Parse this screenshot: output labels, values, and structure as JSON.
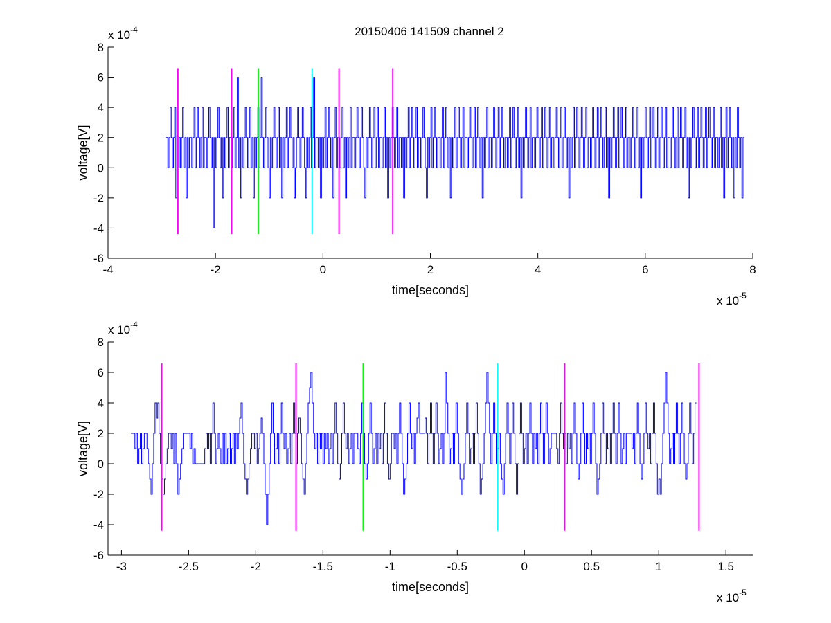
{
  "figure": {
    "title": "20150406 141509 channel 2"
  },
  "chart_data": [
    {
      "type": "line",
      "xlabel": "time[seconds]",
      "ylabel": "voltage[V]",
      "x_multiplier_text": "x 10",
      "x_multiplier_exp": "-5",
      "y_multiplier_text": "x 10",
      "y_multiplier_exp": "-4",
      "xlim": [
        -4,
        8
      ],
      "ylim": [
        -6,
        8
      ],
      "xticks": [
        -4,
        -2,
        0,
        2,
        4,
        6,
        8
      ],
      "xtick_labels": [
        "-4",
        "-2",
        "0",
        "2",
        "4",
        "6",
        "8"
      ],
      "yticks": [
        -6,
        -4,
        -2,
        0,
        2,
        4,
        6,
        8
      ],
      "ytick_labels": [
        "-6",
        "-4",
        "-2",
        "0",
        "2",
        "4",
        "6",
        "8"
      ],
      "grid": false,
      "series": [
        {
          "color": "#0000ff",
          "x_start": -2.93,
          "x_step": 0.0212,
          "values": [
            2,
            2,
            0,
            2,
            4,
            2,
            0,
            2,
            4,
            -2,
            2,
            0,
            2,
            0,
            2,
            4,
            0,
            2,
            -2,
            2,
            0,
            2,
            2,
            0,
            2,
            4,
            0,
            2,
            4,
            2,
            0,
            2,
            4,
            0,
            2,
            2,
            0,
            2,
            4,
            2,
            0,
            2,
            -4,
            2,
            0,
            2,
            4,
            2,
            0,
            2,
            -2,
            2,
            0,
            2,
            4,
            0,
            2,
            2,
            0,
            2,
            4,
            0,
            2,
            6,
            0,
            2,
            -2,
            2,
            0,
            2,
            4,
            2,
            0,
            2,
            4,
            0,
            2,
            -2,
            2,
            0,
            2,
            4,
            0,
            2,
            6,
            2,
            0,
            2,
            4,
            2,
            0,
            -2,
            2,
            0,
            2,
            4,
            2,
            0,
            2,
            4,
            0,
            2,
            -2,
            2,
            0,
            2,
            4,
            0,
            2,
            4,
            2,
            0,
            2,
            -2,
            0,
            2,
            4,
            2,
            0,
            2,
            4,
            2,
            0,
            -2,
            2,
            0,
            2,
            4,
            0,
            2,
            6,
            0,
            2,
            2,
            0,
            2,
            -2,
            2,
            0,
            2,
            4,
            0,
            2,
            4,
            2,
            0,
            2,
            -2,
            2,
            4,
            0,
            2,
            2,
            0,
            2,
            4,
            0,
            2,
            -2,
            2,
            0,
            2,
            4,
            0,
            2,
            2,
            0,
            2,
            4,
            2,
            0,
            2,
            4,
            2,
            0,
            -2,
            2,
            0,
            2,
            4,
            2,
            0,
            2,
            4,
            0,
            2,
            4,
            0,
            2,
            2,
            0,
            2,
            4,
            0,
            2,
            -2,
            2,
            0,
            2,
            4,
            2,
            0,
            2,
            4,
            0,
            2,
            2,
            0,
            2,
            -2,
            2,
            0,
            2,
            4,
            0,
            2,
            4,
            2,
            0,
            2,
            4,
            0,
            2,
            2,
            0,
            2,
            4,
            2,
            0,
            -2,
            2,
            0,
            2,
            4,
            0,
            2,
            4,
            2,
            0,
            2,
            2,
            0,
            2,
            4,
            0,
            2,
            4,
            2,
            0,
            2,
            -2,
            2,
            0,
            2,
            4,
            0,
            2,
            4,
            2,
            0,
            2,
            4,
            0,
            2,
            2,
            0,
            2,
            4,
            2,
            0,
            2,
            4,
            0,
            2,
            4,
            2,
            0,
            2,
            -2,
            2,
            0,
            2,
            4,
            0,
            2,
            2,
            0,
            2,
            4,
            2,
            0,
            2,
            4,
            0,
            2,
            4,
            2,
            0,
            2,
            2,
            0,
            2,
            4,
            0,
            2,
            4,
            2,
            0,
            2,
            4,
            0,
            2,
            -2,
            2,
            0,
            2,
            4,
            2,
            0,
            2,
            4,
            0,
            2,
            2,
            0,
            2,
            4,
            2,
            0,
            2,
            4,
            0,
            2,
            4,
            2,
            0,
            2,
            4,
            0,
            2,
            2,
            0,
            2,
            4,
            2,
            0,
            2,
            4,
            0,
            2,
            4,
            2,
            0,
            2,
            -2,
            2,
            0,
            2,
            4,
            0,
            2,
            4,
            2,
            0,
            2,
            4,
            2,
            0,
            2,
            4,
            0,
            2,
            2,
            0,
            2,
            4,
            2,
            0,
            2,
            4,
            0,
            2,
            4,
            2,
            0,
            2,
            4,
            0,
            2,
            -2,
            2,
            0,
            2,
            4,
            2,
            0,
            2,
            4,
            0,
            2,
            4,
            2,
            0,
            2,
            4,
            0,
            2,
            2,
            0,
            2,
            4,
            2,
            0,
            2,
            4,
            0,
            2,
            -2,
            2,
            0,
            2,
            4,
            2,
            0,
            2,
            4,
            0,
            2,
            4,
            2,
            0,
            2,
            4,
            0,
            2,
            4,
            2,
            0,
            2,
            4,
            0,
            2,
            2,
            0,
            2,
            4,
            2,
            0,
            2,
            4,
            0,
            2,
            4,
            2,
            0,
            2,
            4,
            0,
            2,
            -2,
            2,
            0,
            2,
            4,
            2,
            0,
            2,
            4,
            0,
            2,
            4,
            2,
            0,
            2,
            4,
            0,
            2,
            4,
            2,
            0,
            2,
            4,
            0,
            2,
            2,
            0,
            2,
            4,
            0,
            2,
            -2,
            2,
            4,
            0,
            2,
            4,
            2,
            0,
            2,
            -2,
            2,
            0,
            4,
            2,
            0,
            2,
            -2,
            2
          ]
        }
      ],
      "markers": [
        {
          "x": -2.7,
          "color": "#ff00ff"
        },
        {
          "x": -1.7,
          "color": "#ff00ff"
        },
        {
          "x": -1.2,
          "color": "#00ff00"
        },
        {
          "x": -0.2,
          "color": "#00ffff"
        },
        {
          "x": 0.3,
          "color": "#ff00ff"
        },
        {
          "x": 1.3,
          "color": "#ff00ff"
        }
      ],
      "marker_range": [
        -4.4,
        6.6
      ]
    },
    {
      "type": "line",
      "xlabel": "time[seconds]",
      "ylabel": "voltage[V]",
      "x_multiplier_text": "x 10",
      "x_multiplier_exp": "-5",
      "y_multiplier_text": "x 10",
      "y_multiplier_exp": "-4",
      "xlim": [
        -3.1,
        1.7
      ],
      "ylim": [
        -6,
        8
      ],
      "xticks": [
        -3,
        -2.5,
        -2,
        -1.5,
        -1,
        -0.5,
        0,
        0.5,
        1,
        1.5
      ],
      "xtick_labels": [
        "-3",
        "-2.5",
        "-2",
        "-1.5",
        "-1",
        "-0.5",
        "0",
        "0.5",
        "1",
        "1.5"
      ],
      "yticks": [
        -6,
        -4,
        -2,
        0,
        2,
        4,
        6,
        8
      ],
      "ytick_labels": [
        "-6",
        "-4",
        "-2",
        "0",
        "2",
        "4",
        "6",
        "8"
      ],
      "grid": false,
      "series": [
        {
          "color": "#0000ff",
          "x_start": -2.93,
          "x_step": 0.01,
          "values": [
            2,
            2,
            2,
            1,
            2,
            0,
            1,
            2,
            0,
            1,
            2,
            2,
            1,
            0,
            -1,
            -2,
            0,
            2,
            4,
            3,
            4,
            2,
            0,
            -1,
            -2,
            -1,
            0,
            1,
            2,
            2,
            1,
            2,
            0,
            2,
            0,
            -2,
            -1,
            0,
            1,
            2,
            2,
            2,
            2,
            2,
            1,
            2,
            0,
            1,
            0,
            0,
            0,
            0,
            0,
            0,
            0,
            1,
            2,
            1,
            2,
            0,
            2,
            4,
            2,
            0,
            1,
            2,
            1,
            0,
            2,
            0,
            2,
            0,
            1,
            2,
            0,
            1,
            2,
            0,
            2,
            1,
            2,
            3,
            4,
            2,
            0,
            -1,
            -2,
            -1,
            0,
            1,
            2,
            2,
            1,
            2,
            0,
            1,
            2,
            3,
            2,
            0,
            -2,
            -4,
            -2,
            0,
            2,
            4,
            2,
            0,
            1,
            2,
            0,
            2,
            4,
            2,
            1,
            2,
            0,
            1,
            2,
            0,
            2,
            4,
            2,
            0,
            2,
            3,
            2,
            0,
            -1,
            -2,
            0,
            2,
            4,
            5,
            6,
            4,
            2,
            1,
            2,
            0,
            2,
            1,
            2,
            0,
            2,
            1,
            2,
            0,
            1,
            2,
            0,
            2,
            4,
            2,
            0,
            -1,
            0,
            2,
            4,
            2,
            1,
            2,
            0,
            1,
            2,
            0,
            2,
            2,
            2,
            1,
            0,
            2,
            4,
            2,
            0,
            -1,
            0,
            2,
            4,
            2,
            0,
            1,
            2,
            0,
            2,
            1,
            2,
            0,
            2,
            4,
            2,
            0,
            -1,
            0,
            2,
            2,
            1,
            2,
            0,
            2,
            4,
            2,
            0,
            -2,
            -1,
            0,
            2,
            4,
            2,
            1,
            2,
            0,
            2,
            3,
            4,
            2,
            2,
            2,
            2,
            3,
            2,
            0,
            2,
            4,
            2,
            0,
            2,
            4,
            2,
            0,
            1,
            2,
            0,
            2,
            6,
            4,
            2,
            0,
            1,
            2,
            0,
            2,
            4,
            2,
            0,
            -1,
            -2,
            -1,
            0,
            2,
            4,
            2,
            0,
            1,
            2,
            0,
            2,
            4,
            2,
            0,
            -2,
            -1,
            0,
            2,
            4,
            6,
            4,
            2,
            0,
            2,
            4,
            2,
            0,
            1,
            2,
            0,
            -1,
            -2,
            0,
            2,
            4,
            2,
            0,
            2,
            4,
            2,
            0,
            -2,
            0,
            2,
            4,
            2,
            0,
            1,
            2,
            0,
            2,
            4,
            2,
            0,
            2,
            1,
            2,
            0,
            2,
            4,
            2,
            0,
            2,
            4,
            2,
            0,
            1,
            2,
            2,
            2,
            2,
            1,
            0,
            2,
            4,
            2,
            1,
            2,
            0,
            2,
            1,
            2,
            0,
            2,
            4,
            2,
            0,
            -1,
            0,
            2,
            4,
            2,
            0,
            2,
            1,
            2,
            0,
            2,
            4,
            2,
            0,
            -2,
            -1,
            0,
            2,
            4,
            2,
            0,
            2,
            1,
            2,
            0,
            2,
            4,
            2,
            0,
            2,
            4,
            2,
            0,
            1,
            2,
            0,
            2,
            2,
            2,
            2,
            1,
            2,
            0,
            2,
            4,
            2,
            0,
            -1,
            0,
            2,
            4,
            2,
            1,
            2,
            0,
            2,
            4,
            2,
            0,
            -2,
            -1,
            -2,
            0,
            2,
            4,
            6,
            4,
            2,
            0,
            1,
            2,
            0,
            2,
            4,
            2,
            0,
            2,
            4,
            2,
            0,
            -1,
            0,
            2,
            4,
            2,
            0,
            2,
            4
          ]
        }
      ],
      "markers": [
        {
          "x": -2.7,
          "color": "#ff00ff"
        },
        {
          "x": -1.7,
          "color": "#ff00ff"
        },
        {
          "x": -1.2,
          "color": "#00ff00"
        },
        {
          "x": -0.2,
          "color": "#00ffff"
        },
        {
          "x": 0.3,
          "color": "#ff00ff"
        },
        {
          "x": 1.3,
          "color": "#ff00ff"
        }
      ],
      "marker_range": [
        -4.4,
        6.6
      ]
    }
  ]
}
